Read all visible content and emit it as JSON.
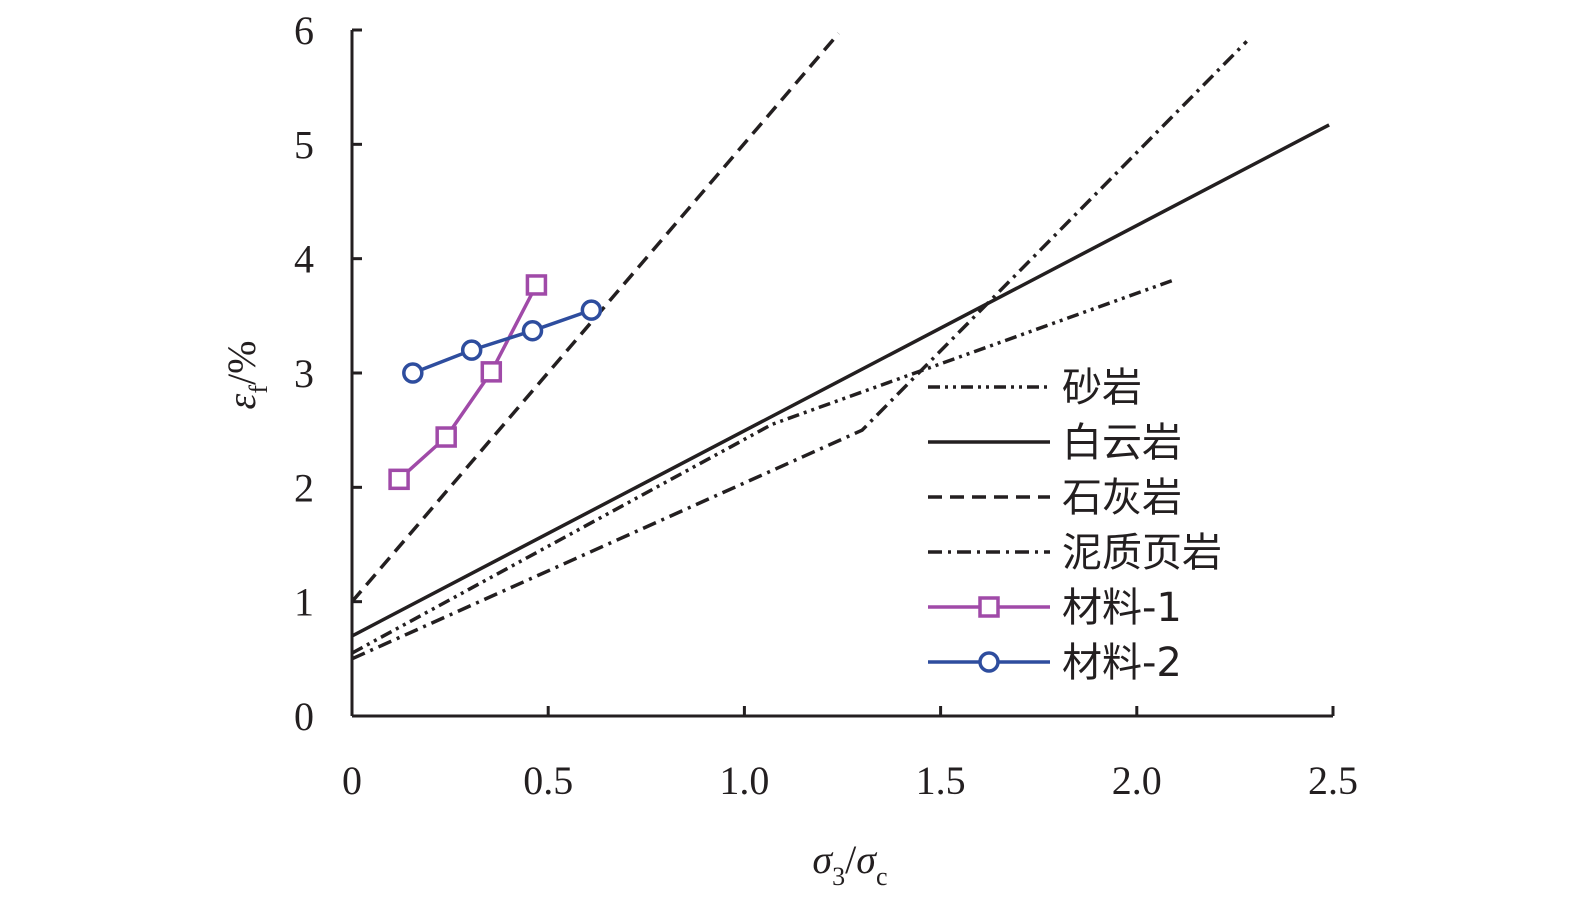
{
  "chart_data": {
    "type": "line",
    "title": "",
    "xlabel": {
      "main": "σ",
      "sub": "3",
      "sep": "/",
      "main2": "σ",
      "sub2": "c"
    },
    "ylabel": {
      "main": "ε",
      "sub": "f",
      "sep": "/",
      "unit": "%"
    },
    "xlim": [
      0,
      2.5
    ],
    "ylim": [
      0,
      6
    ],
    "xticks": [
      0,
      0.5,
      1.0,
      1.5,
      2.0,
      2.5
    ],
    "xtick_labels": [
      "0",
      "0.5",
      "1.0",
      "1.5",
      "2.0",
      "2.5"
    ],
    "yticks": [
      0,
      1,
      2,
      3,
      4,
      5,
      6
    ],
    "ytick_labels": [
      "0",
      "1",
      "2",
      "3",
      "4",
      "5",
      "6"
    ],
    "legend_position": "lower-right",
    "series": [
      {
        "name": "砂岩",
        "style": "dash-dot-dot",
        "color": "#231f20",
        "x": [
          0,
          1.07,
          2.1
        ],
        "y": [
          0.55,
          2.55,
          3.82
        ]
      },
      {
        "name": "白云岩",
        "style": "solid",
        "color": "#231f20",
        "x": [
          0,
          2.49
        ],
        "y": [
          0.7,
          5.17
        ]
      },
      {
        "name": "石灰岩",
        "style": "dashed",
        "color": "#231f20",
        "x": [
          0,
          1.24
        ],
        "y": [
          1.0,
          5.97
        ]
      },
      {
        "name": "泥质页岩",
        "style": "dash-dot",
        "color": "#231f20",
        "x": [
          0,
          1.3,
          2.28
        ],
        "y": [
          0.5,
          2.5,
          5.9
        ]
      },
      {
        "name": "材料-1",
        "style": "solid",
        "marker": "square",
        "color": "#a04aa8",
        "x": [
          0.12,
          0.24,
          0.355,
          0.47
        ],
        "y": [
          2.07,
          2.44,
          3.01,
          3.77
        ]
      },
      {
        "name": "材料-2",
        "style": "solid",
        "marker": "circle",
        "color": "#2e4d9e",
        "x": [
          0.155,
          0.305,
          0.46,
          0.61
        ],
        "y": [
          3.0,
          3.2,
          3.37,
          3.55
        ]
      }
    ]
  }
}
